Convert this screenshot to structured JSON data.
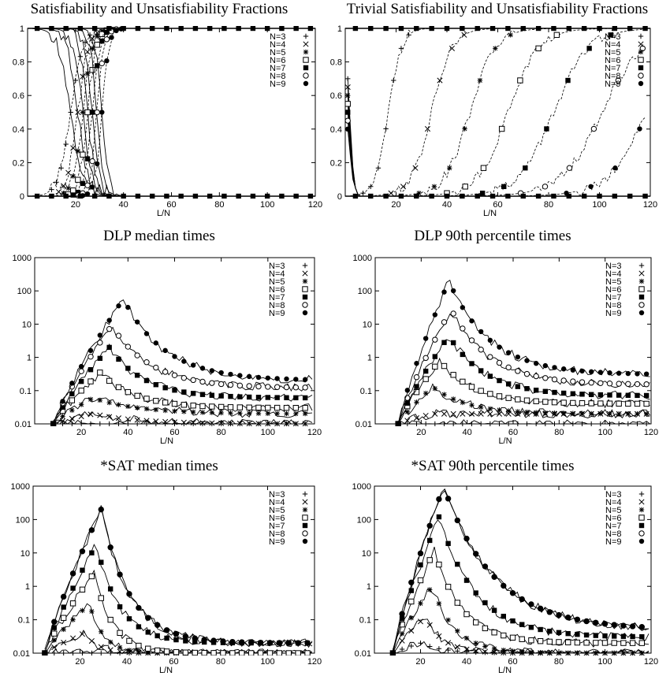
{
  "chart_data": [
    {
      "type": "line",
      "title": "Satisfiability and Unsatisfiability Fractions",
      "xlabel": "L/N",
      "ylabel": "",
      "xlim": [
        0,
        120
      ],
      "ylim": [
        0,
        1
      ],
      "log_y": false,
      "x_ticks": [
        "20",
        "40",
        "60",
        "80",
        "100",
        "120"
      ],
      "y_ticks": [
        "0",
        "0.2",
        "0.4",
        "0.6",
        "0.8",
        "1"
      ],
      "legend": [
        "N=3",
        "N=4",
        "N=5",
        "N=6",
        "N=7",
        "N=8",
        "N=9"
      ],
      "legend_position": "top-right",
      "series": [
        {
          "name": "N=3",
          "kind": "sigmoid",
          "center": 18,
          "width": 2.5
        },
        {
          "name": "N=4",
          "kind": "sigmoid",
          "center": 21,
          "width": 2.2
        },
        {
          "name": "N=5",
          "kind": "sigmoid",
          "center": 23,
          "width": 2.0
        },
        {
          "name": "N=6",
          "kind": "sigmoid",
          "center": 25,
          "width": 1.8
        },
        {
          "name": "N=7",
          "kind": "sigmoid",
          "center": 27,
          "width": 1.6
        },
        {
          "name": "N=8",
          "kind": "sigmoid",
          "center": 29,
          "width": 1.5
        },
        {
          "name": "N=9",
          "kind": "sigmoid",
          "center": 31,
          "width": 1.4
        }
      ]
    },
    {
      "type": "line",
      "title": "Trivial Satisfiability and Unsatisfiability Fractions",
      "xlabel": "L/N",
      "ylabel": "",
      "xlim": [
        0,
        120
      ],
      "ylim": [
        0,
        1
      ],
      "log_y": false,
      "x_ticks": [
        "20",
        "40",
        "60",
        "80",
        "100",
        "120"
      ],
      "y_ticks": [
        "0",
        "0.2",
        "0.4",
        "0.6",
        "0.8",
        "1"
      ],
      "legend": [
        "N=3",
        "N=4",
        "N=5",
        "N=6",
        "N=7",
        "N=8",
        "N=9"
      ],
      "legend_position": "top-right",
      "series": [
        {
          "name": "N=3",
          "kind": "trivial",
          "center": 12,
          "width": 2.5
        },
        {
          "name": "N=4",
          "kind": "trivial",
          "center": 26,
          "width": 4
        },
        {
          "name": "N=5",
          "kind": "trivial",
          "center": 39,
          "width": 5
        },
        {
          "name": "N=6",
          "kind": "trivial",
          "center": 52,
          "width": 6
        },
        {
          "name": "N=7",
          "kind": "trivial",
          "center": 68,
          "width": 7
        },
        {
          "name": "N=8",
          "kind": "trivial",
          "center": 85,
          "width": 8
        },
        {
          "name": "N=9",
          "kind": "trivial",
          "center": 103,
          "width": 8
        }
      ]
    },
    {
      "type": "line",
      "title": "DLP median times",
      "xlabel": "L/N",
      "ylabel": "",
      "xlim": [
        0,
        120
      ],
      "ylim": [
        0.01,
        1000
      ],
      "log_y": true,
      "x_ticks": [
        "20",
        "40",
        "60",
        "80",
        "100",
        "120"
      ],
      "y_ticks": [
        "0.01",
        "0.1",
        "1",
        "10",
        "100",
        "1000"
      ],
      "legend": [
        "N=3",
        "N=4",
        "N=5",
        "N=6",
        "N=7",
        "N=8",
        "N=9"
      ],
      "legend_position": "top-right",
      "series": [
        {
          "name": "N=3",
          "kind": "peak",
          "x_start": 8,
          "peak_x": 25,
          "peak": 0.01,
          "plateau": 0.01,
          "decay": 30
        },
        {
          "name": "N=4",
          "kind": "peak",
          "x_start": 8,
          "peak_x": 25,
          "peak": 0.02,
          "plateau": 0.01,
          "decay": 20
        },
        {
          "name": "N=5",
          "kind": "peak",
          "x_start": 8,
          "peak_x": 25,
          "peak": 0.06,
          "plateau": 0.02,
          "decay": 20
        },
        {
          "name": "N=6",
          "kind": "peak",
          "x_start": 8,
          "peak_x": 28,
          "peak": 0.35,
          "plateau": 0.03,
          "decay": 15
        },
        {
          "name": "N=7",
          "kind": "peak",
          "x_start": 8,
          "peak_x": 32,
          "peak": 2,
          "plateau": 0.06,
          "decay": 15
        },
        {
          "name": "N=8",
          "kind": "peak",
          "x_start": 8,
          "peak_x": 33,
          "peak": 9,
          "plateau": 0.12,
          "decay": 17
        },
        {
          "name": "N=9",
          "kind": "peak",
          "x_start": 8,
          "peak_x": 38,
          "peak": 58,
          "plateau": 0.2,
          "decay": 18
        }
      ]
    },
    {
      "type": "line",
      "title": "DLP 90th percentile times",
      "xlabel": "L/N",
      "ylabel": "",
      "xlim": [
        0,
        120
      ],
      "ylim": [
        0.01,
        1000
      ],
      "log_y": true,
      "x_ticks": [
        "20",
        "40",
        "60",
        "80",
        "100",
        "120"
      ],
      "y_ticks": [
        "0.01",
        "0.1",
        "1",
        "10",
        "100",
        "1000"
      ],
      "legend": [
        "N=3",
        "N=4",
        "N=5",
        "N=6",
        "N=7",
        "N=8",
        "N=9"
      ],
      "legend_position": "top-right",
      "series": [
        {
          "name": "N=3",
          "kind": "peak",
          "x_start": 10,
          "peak_x": 25,
          "peak": 0.01,
          "plateau": 0.01,
          "decay": 30
        },
        {
          "name": "N=4",
          "kind": "peak",
          "x_start": 10,
          "peak_x": 25,
          "peak": 0.02,
          "plateau": 0.02,
          "decay": 20
        },
        {
          "name": "N=5",
          "kind": "peak",
          "x_start": 10,
          "peak_x": 25,
          "peak": 0.13,
          "plateau": 0.02,
          "decay": 15
        },
        {
          "name": "N=6",
          "kind": "peak",
          "x_start": 10,
          "peak_x": 28,
          "peak": 0.8,
          "plateau": 0.04,
          "decay": 15
        },
        {
          "name": "N=7",
          "kind": "peak",
          "x_start": 10,
          "peak_x": 32,
          "peak": 4.5,
          "plateau": 0.07,
          "decay": 16
        },
        {
          "name": "N=8",
          "kind": "peak",
          "x_start": 10,
          "peak_x": 33,
          "peak": 28,
          "plateau": 0.15,
          "decay": 17
        },
        {
          "name": "N=9",
          "kind": "peak",
          "x_start": 10,
          "peak_x": 32,
          "peak": 200,
          "plateau": 0.3,
          "decay": 18
        }
      ]
    },
    {
      "type": "line",
      "title": "*SAT median times",
      "xlabel": "L/N",
      "ylabel": "",
      "xlim": [
        0,
        120
      ],
      "ylim": [
        0.01,
        1000
      ],
      "log_y": true,
      "x_ticks": [
        "20",
        "40",
        "60",
        "80",
        "100",
        "120"
      ],
      "y_ticks": [
        "0.01",
        "0.1",
        "1",
        "10",
        "100",
        "1000"
      ],
      "legend": [
        "N=3",
        "N=4",
        "N=5",
        "N=6",
        "N=7",
        "N=8",
        "N=9"
      ],
      "legend_position": "top-right",
      "series": [
        {
          "name": "N=3",
          "kind": "peak",
          "x_start": 5,
          "peak_x": 18,
          "peak": 0.01,
          "plateau": 0.01,
          "decay": 10
        },
        {
          "name": "N=4",
          "kind": "peak",
          "x_start": 5,
          "peak_x": 22,
          "peak": 0.04,
          "plateau": 0.01,
          "decay": 6
        },
        {
          "name": "N=5",
          "kind": "peak",
          "x_start": 5,
          "peak_x": 24,
          "peak": 0.3,
          "plateau": 0.01,
          "decay": 6
        },
        {
          "name": "N=6",
          "kind": "peak",
          "x_start": 5,
          "peak_x": 26,
          "peak": 2.5,
          "plateau": 0.01,
          "decay": 8
        },
        {
          "name": "N=7",
          "kind": "peak",
          "x_start": 5,
          "peak_x": 27,
          "peak": 18,
          "plateau": 0.02,
          "decay": 10
        },
        {
          "name": "N=8",
          "kind": "peak",
          "x_start": 5,
          "peak_x": 29,
          "peak": 200,
          "plateau": 0.02,
          "decay": 12
        },
        {
          "name": "N=9",
          "kind": "peak",
          "x_start": 5,
          "peak_x": 29,
          "peak": 200,
          "plateau": 0.02,
          "decay": 12
        }
      ]
    },
    {
      "type": "line",
      "title": "*SAT 90th percentile times",
      "xlabel": "L/N",
      "ylabel": "",
      "xlim": [
        0,
        120
      ],
      "ylim": [
        0.01,
        1000
      ],
      "log_y": true,
      "x_ticks": [
        "20",
        "40",
        "60",
        "80",
        "100",
        "120"
      ],
      "y_ticks": [
        "0.01",
        "0.1",
        "1",
        "10",
        "100",
        "1000"
      ],
      "legend": [
        "N=3",
        "N=4",
        "N=5",
        "N=6",
        "N=7",
        "N=8",
        "N=9"
      ],
      "legend_position": "top-right",
      "series": [
        {
          "name": "N=3",
          "kind": "peak",
          "x_start": 8,
          "peak_x": 20,
          "peak": 0.02,
          "plateau": 0.01,
          "decay": 10
        },
        {
          "name": "N=4",
          "kind": "peak",
          "x_start": 8,
          "peak_x": 22,
          "peak": 0.12,
          "plateau": 0.01,
          "decay": 8
        },
        {
          "name": "N=5",
          "kind": "peak",
          "x_start": 8,
          "peak_x": 25,
          "peak": 1,
          "plateau": 0.01,
          "decay": 10
        },
        {
          "name": "N=6",
          "kind": "peak",
          "x_start": 8,
          "peak_x": 26,
          "peak": 12,
          "plateau": 0.02,
          "decay": 12
        },
        {
          "name": "N=7",
          "kind": "peak",
          "x_start": 8,
          "peak_x": 28,
          "peak": 120,
          "plateau": 0.03,
          "decay": 16
        },
        {
          "name": "N=8",
          "kind": "peak",
          "x_start": 8,
          "peak_x": 30,
          "peak": 1000,
          "plateau": 0.05,
          "decay": 22
        },
        {
          "name": "N=9",
          "kind": "peak",
          "x_start": 8,
          "peak_x": 30,
          "peak": 1000,
          "plateau": 0.05,
          "decay": 22
        }
      ]
    }
  ]
}
